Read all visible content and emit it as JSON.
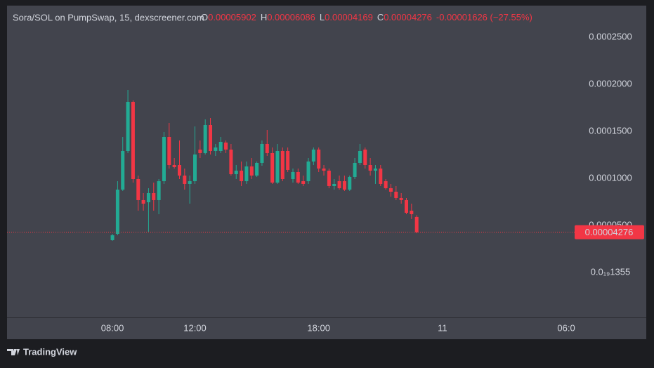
{
  "chart_data": {
    "type": "candlestick",
    "title": "Sora/SOL on PumpSwap, 15, dexscreener.com",
    "ohlc_labels": [
      "O",
      "H",
      "L",
      "C"
    ],
    "change": "-0.00001626 (−27.55%)",
    "up_color": "#22ab94",
    "down_color": "#f23645",
    "x": [
      8,
      8.25,
      8.5,
      8.75,
      9,
      9.25,
      9.5,
      9.75,
      10,
      10.25,
      10.5,
      10.75,
      11,
      11.25,
      11.5,
      11.75,
      12,
      12.25,
      12.5,
      12.75,
      13,
      13.25,
      13.5,
      13.75,
      14,
      14.25,
      14.5,
      14.75,
      15,
      15.25,
      15.5,
      15.75,
      16,
      16.25,
      16.5,
      16.75,
      17,
      17.25,
      17.5,
      17.75,
      18,
      18.25,
      18.5,
      18.75,
      19,
      19.25,
      19.5,
      19.75,
      20,
      20.25,
      20.5,
      20.75,
      21,
      21.25,
      21.5,
      21.75,
      22,
      22.25,
      22.5,
      22.75
    ],
    "open": [
      3.433e-05,
      4.104e-05,
      8.806e-05,
      0.0001291,
      0.00018134,
      9.925e-05,
      7.687e-05,
      7.463e-05,
      8.433e-05,
      7.687e-05,
      9.702e-05,
      0.00014403,
      0.00011418,
      0.00011418,
      0.00010299,
      9.403e-05,
      9.702e-05,
      0.0001306,
      0.00012687,
      0.00015672,
      0.0001291,
      0.0001291,
      0.00013806,
      0.0001306,
      0.00010448,
      0.00010821,
      9.702e-05,
      0.00011269,
      0.00010299,
      0.00011642,
      0.00013657,
      0.00012687,
      9.552e-05,
      0.0001291,
      0.0001291,
      9.925e-05,
      0.00010672,
      9.702e-05,
      9.702e-05,
      0.00011791,
      0.0001306,
      0.00011045,
      0.00010821,
      9.179e-05,
      9.702e-05,
      9.702e-05,
      8.806e-05,
      0.00010149,
      0.00011642,
      0.0001306,
      0.00011418,
      0.00010821,
      0.00011045,
      9.702e-05,
      8.955e-05,
      8.582e-05,
      7.91e-05,
      7.687e-05,
      6.567e-05,
      5.902e-05
    ],
    "high": [
      4.104e-05,
      9.702e-05,
      0.00014403,
      0.00019403,
      0.00018284,
      0.00010299,
      8.433e-05,
      8.955e-05,
      9.552e-05,
      9.925e-05,
      0.00014925,
      0.00015896,
      0.00012164,
      0.0001403,
      0.00011045,
      0.00010299,
      0.00015522,
      0.0001403,
      0.00016269,
      0.00016418,
      0.00013657,
      0.00014403,
      0.0001403,
      0.00013657,
      0.00011418,
      0.00011791,
      0.00011791,
      0.00012164,
      0.00011791,
      0.0001403,
      0.00015149,
      0.00013284,
      0.00013657,
      0.00013284,
      0.00013284,
      0.00011045,
      0.00011045,
      0.00010299,
      0.00012164,
      0.00013284,
      0.00013284,
      0.00011418,
      0.00011045,
      9.925e-05,
      0.00010299,
      0.00010299,
      0.00010299,
      0.00012164,
      0.00013657,
      0.00013284,
      0.00012164,
      0.00011418,
      0.00011418,
      9.925e-05,
      9.403e-05,
      9.179e-05,
      8.433e-05,
      7.91e-05,
      7.313e-05,
      6.086e-05
    ],
    "low": [
      3.358e-05,
      3.955e-05,
      8.657e-05,
      0.00012687,
      9.552e-05,
      6.567e-05,
      6.567e-05,
      4.328e-05,
      6.567e-05,
      6.194e-05,
      9.403e-05,
      0.00011045,
      0.00011045,
      9.925e-05,
      8.806e-05,
      7.313e-05,
      9.403e-05,
      0.00012164,
      0.00012537,
      0.00012537,
      0.00012388,
      0.00012687,
      0.00012687,
      0.00010299,
      9.925e-05,
      9.179e-05,
      9.403e-05,
      9.925e-05,
      0.00010149,
      0.00011343,
      0.00012388,
      9.403e-05,
      9.403e-05,
      9.702e-05,
      0.00010672,
      9.552e-05,
      9.403e-05,
      9.179e-05,
      9.403e-05,
      0.00011418,
      0.00010672,
      0.00010299,
      8.955e-05,
      8.806e-05,
      8.806e-05,
      8.657e-05,
      8.657e-05,
      9.925e-05,
      0.00011418,
      0.00011045,
      0.00010299,
      9.403e-05,
      9.179e-05,
      8.806e-05,
      8.06e-05,
      7.687e-05,
      7.313e-05,
      6.194e-05,
      5.672e-05,
      4.169e-05
    ],
    "close": [
      3.955e-05,
      8.806e-05,
      0.0001291,
      0.00018134,
      9.925e-05,
      7.687e-05,
      7.313e-05,
      8.433e-05,
      7.687e-05,
      9.702e-05,
      0.00014403,
      0.00011418,
      0.00011194,
      0.00010299,
      9.403e-05,
      9.702e-05,
      0.00012537,
      0.00012687,
      0.00015672,
      0.0001291,
      0.00013284,
      0.00013881,
      0.0001306,
      0.00010448,
      0.00010821,
      9.702e-05,
      0.00011269,
      0.00010299,
      0.00011642,
      0.00013657,
      0.00012687,
      9.552e-05,
      0.0001291,
      9.925e-05,
      0.00010896,
      0.00010672,
      9.552e-05,
      9.403e-05,
      0.00011791,
      0.0001306,
      0.00011045,
      0.00010821,
      9.179e-05,
      9.403e-05,
      8.955e-05,
      8.806e-05,
      0.00010149,
      0.00011642,
      0.0001291,
      0.00011418,
      0.00010821,
      0.00011045,
      9.403e-05,
      8.955e-05,
      8.582e-05,
      7.91e-05,
      7.687e-05,
      6.343e-05,
      6.194e-05,
      4.276e-05
    ],
    "xlim": [
      2.89,
      33.88
    ],
    "xticks": [
      {
        "value": 8,
        "label": "08:00"
      },
      {
        "value": 12,
        "label": "12:00"
      },
      {
        "value": 18,
        "label": "18:00"
      },
      {
        "value": 24,
        "label": "11"
      },
      {
        "value": 30,
        "label": "06:0"
      }
    ],
    "ylim": [
      -4.78e-05,
      0.0002836
    ],
    "yticks": [
      {
        "value": 1.355e-20,
        "label": "0.0₁₉1355"
      },
      {
        "value": 5e-05,
        "label": "0.0000500"
      },
      {
        "value": 0.0001,
        "label": "0.0001000"
      },
      {
        "value": 0.00015,
        "label": "0.0001500"
      },
      {
        "value": 0.0002,
        "label": "0.0002000"
      },
      {
        "value": 0.00025,
        "label": "0.0002500"
      }
    ],
    "branding": "TradingView"
  }
}
